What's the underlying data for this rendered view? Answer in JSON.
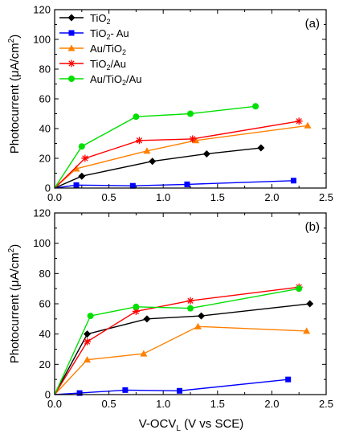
{
  "figure": {
    "ylabel_parts": [
      "Photocurrent (",
      "μ",
      "A/cm",
      "2",
      ")"
    ],
    "xlabel_parts": [
      "V-OCV",
      "L",
      " (V vs SCE)"
    ]
  },
  "legend": {
    "items": [
      {
        "series": "TiO2",
        "parts": [
          [
            "TiO",
            ""
          ],
          [
            "2",
            "sub"
          ]
        ]
      },
      {
        "series": "TiO2- Au",
        "parts": [
          [
            "TiO",
            ""
          ],
          [
            "2",
            "sub"
          ],
          [
            "- Au",
            ""
          ]
        ]
      },
      {
        "series": "Au/TiO2",
        "parts": [
          [
            "Au/TiO",
            ""
          ],
          [
            "2",
            "sub"
          ]
        ]
      },
      {
        "series": "TiO2/Au",
        "parts": [
          [
            "TiO",
            ""
          ],
          [
            "2",
            "sub"
          ],
          [
            "/Au",
            ""
          ]
        ]
      },
      {
        "series": "Au/TiO2/Au",
        "parts": [
          [
            "Au/TiO",
            ""
          ],
          [
            "2",
            "sub"
          ],
          [
            "/Au",
            ""
          ]
        ]
      }
    ]
  },
  "styles": {
    "TiO2": {
      "color": "#000000",
      "marker": "diamond"
    },
    "TiO2- Au": {
      "color": "#0000ff",
      "marker": "square"
    },
    "Au/TiO2": {
      "color": "#ff8000",
      "marker": "triangle"
    },
    "TiO2/Au": {
      "color": "#ff0000",
      "marker": "asterisk"
    },
    "Au/TiO2/Au": {
      "color": "#00e000",
      "marker": "circle"
    }
  },
  "chart_data": [
    {
      "type": "line",
      "panel_label": "(a)",
      "xlabel": "V-OCVL (V vs SCE)",
      "ylabel": "Photocurrent (μA/cm2)",
      "xlim": [
        0.0,
        2.5
      ],
      "ylim": [
        0,
        120
      ],
      "xticks": [
        "0.0",
        "0.5",
        "1.0",
        "1.5",
        "2.0",
        "2.5"
      ],
      "yticks": [
        "0",
        "20",
        "40",
        "60",
        "80",
        "100",
        "120"
      ],
      "legend_position": "top-left",
      "grid": false,
      "series": [
        {
          "name": "TiO2",
          "points": [
            [
              0,
              0
            ],
            [
              0.25,
              8
            ],
            [
              0.9,
              18
            ],
            [
              1.4,
              23
            ],
            [
              1.9,
              27
            ]
          ]
        },
        {
          "name": "TiO2- Au",
          "points": [
            [
              0,
              0
            ],
            [
              0.2,
              2
            ],
            [
              0.72,
              1.5
            ],
            [
              1.22,
              2.5
            ],
            [
              2.2,
              5
            ]
          ]
        },
        {
          "name": "Au/TiO2",
          "points": [
            [
              0,
              0
            ],
            [
              0.2,
              13
            ],
            [
              0.85,
              25
            ],
            [
              1.3,
              32
            ],
            [
              2.33,
              42
            ]
          ]
        },
        {
          "name": "TiO2/Au",
          "points": [
            [
              0,
              0
            ],
            [
              0.28,
              20
            ],
            [
              0.78,
              32
            ],
            [
              1.27,
              33
            ],
            [
              2.25,
              45
            ]
          ]
        },
        {
          "name": "Au/TiO2/Au",
          "points": [
            [
              0,
              0
            ],
            [
              0.25,
              28
            ],
            [
              0.75,
              48
            ],
            [
              1.25,
              50
            ],
            [
              1.85,
              55
            ]
          ]
        }
      ]
    },
    {
      "type": "line",
      "panel_label": "(b)",
      "xlabel": "V-OCVL (V vs SCE)",
      "ylabel": "Photocurrent (μA/cm2)",
      "xlim": [
        0.0,
        2.5
      ],
      "ylim": [
        0,
        120
      ],
      "xticks": [
        "0.0",
        "0.5",
        "1.0",
        "1.5",
        "2.0",
        "2.5"
      ],
      "yticks": [
        "0",
        "20",
        "40",
        "60",
        "80",
        "100",
        "120"
      ],
      "grid": false,
      "series": [
        {
          "name": "TiO2",
          "points": [
            [
              0,
              0
            ],
            [
              0.3,
              40
            ],
            [
              0.85,
              50
            ],
            [
              1.35,
              52
            ],
            [
              2.35,
              60
            ]
          ]
        },
        {
          "name": "TiO2- Au",
          "points": [
            [
              0,
              0
            ],
            [
              0.23,
              1
            ],
            [
              0.65,
              3
            ],
            [
              1.15,
              2.5
            ],
            [
              2.15,
              10
            ]
          ]
        },
        {
          "name": "Au/TiO2",
          "points": [
            [
              0,
              0
            ],
            [
              0.3,
              23
            ],
            [
              0.82,
              27
            ],
            [
              1.32,
              45
            ],
            [
              2.32,
              42
            ]
          ]
        },
        {
          "name": "TiO2/Au",
          "points": [
            [
              0,
              0
            ],
            [
              0.3,
              35
            ],
            [
              0.75,
              55
            ],
            [
              1.25,
              62
            ],
            [
              2.25,
              71
            ]
          ]
        },
        {
          "name": "Au/TiO2/Au",
          "points": [
            [
              0,
              0
            ],
            [
              0.33,
              52
            ],
            [
              0.75,
              58
            ],
            [
              1.25,
              57
            ],
            [
              2.25,
              70
            ]
          ]
        }
      ]
    }
  ]
}
